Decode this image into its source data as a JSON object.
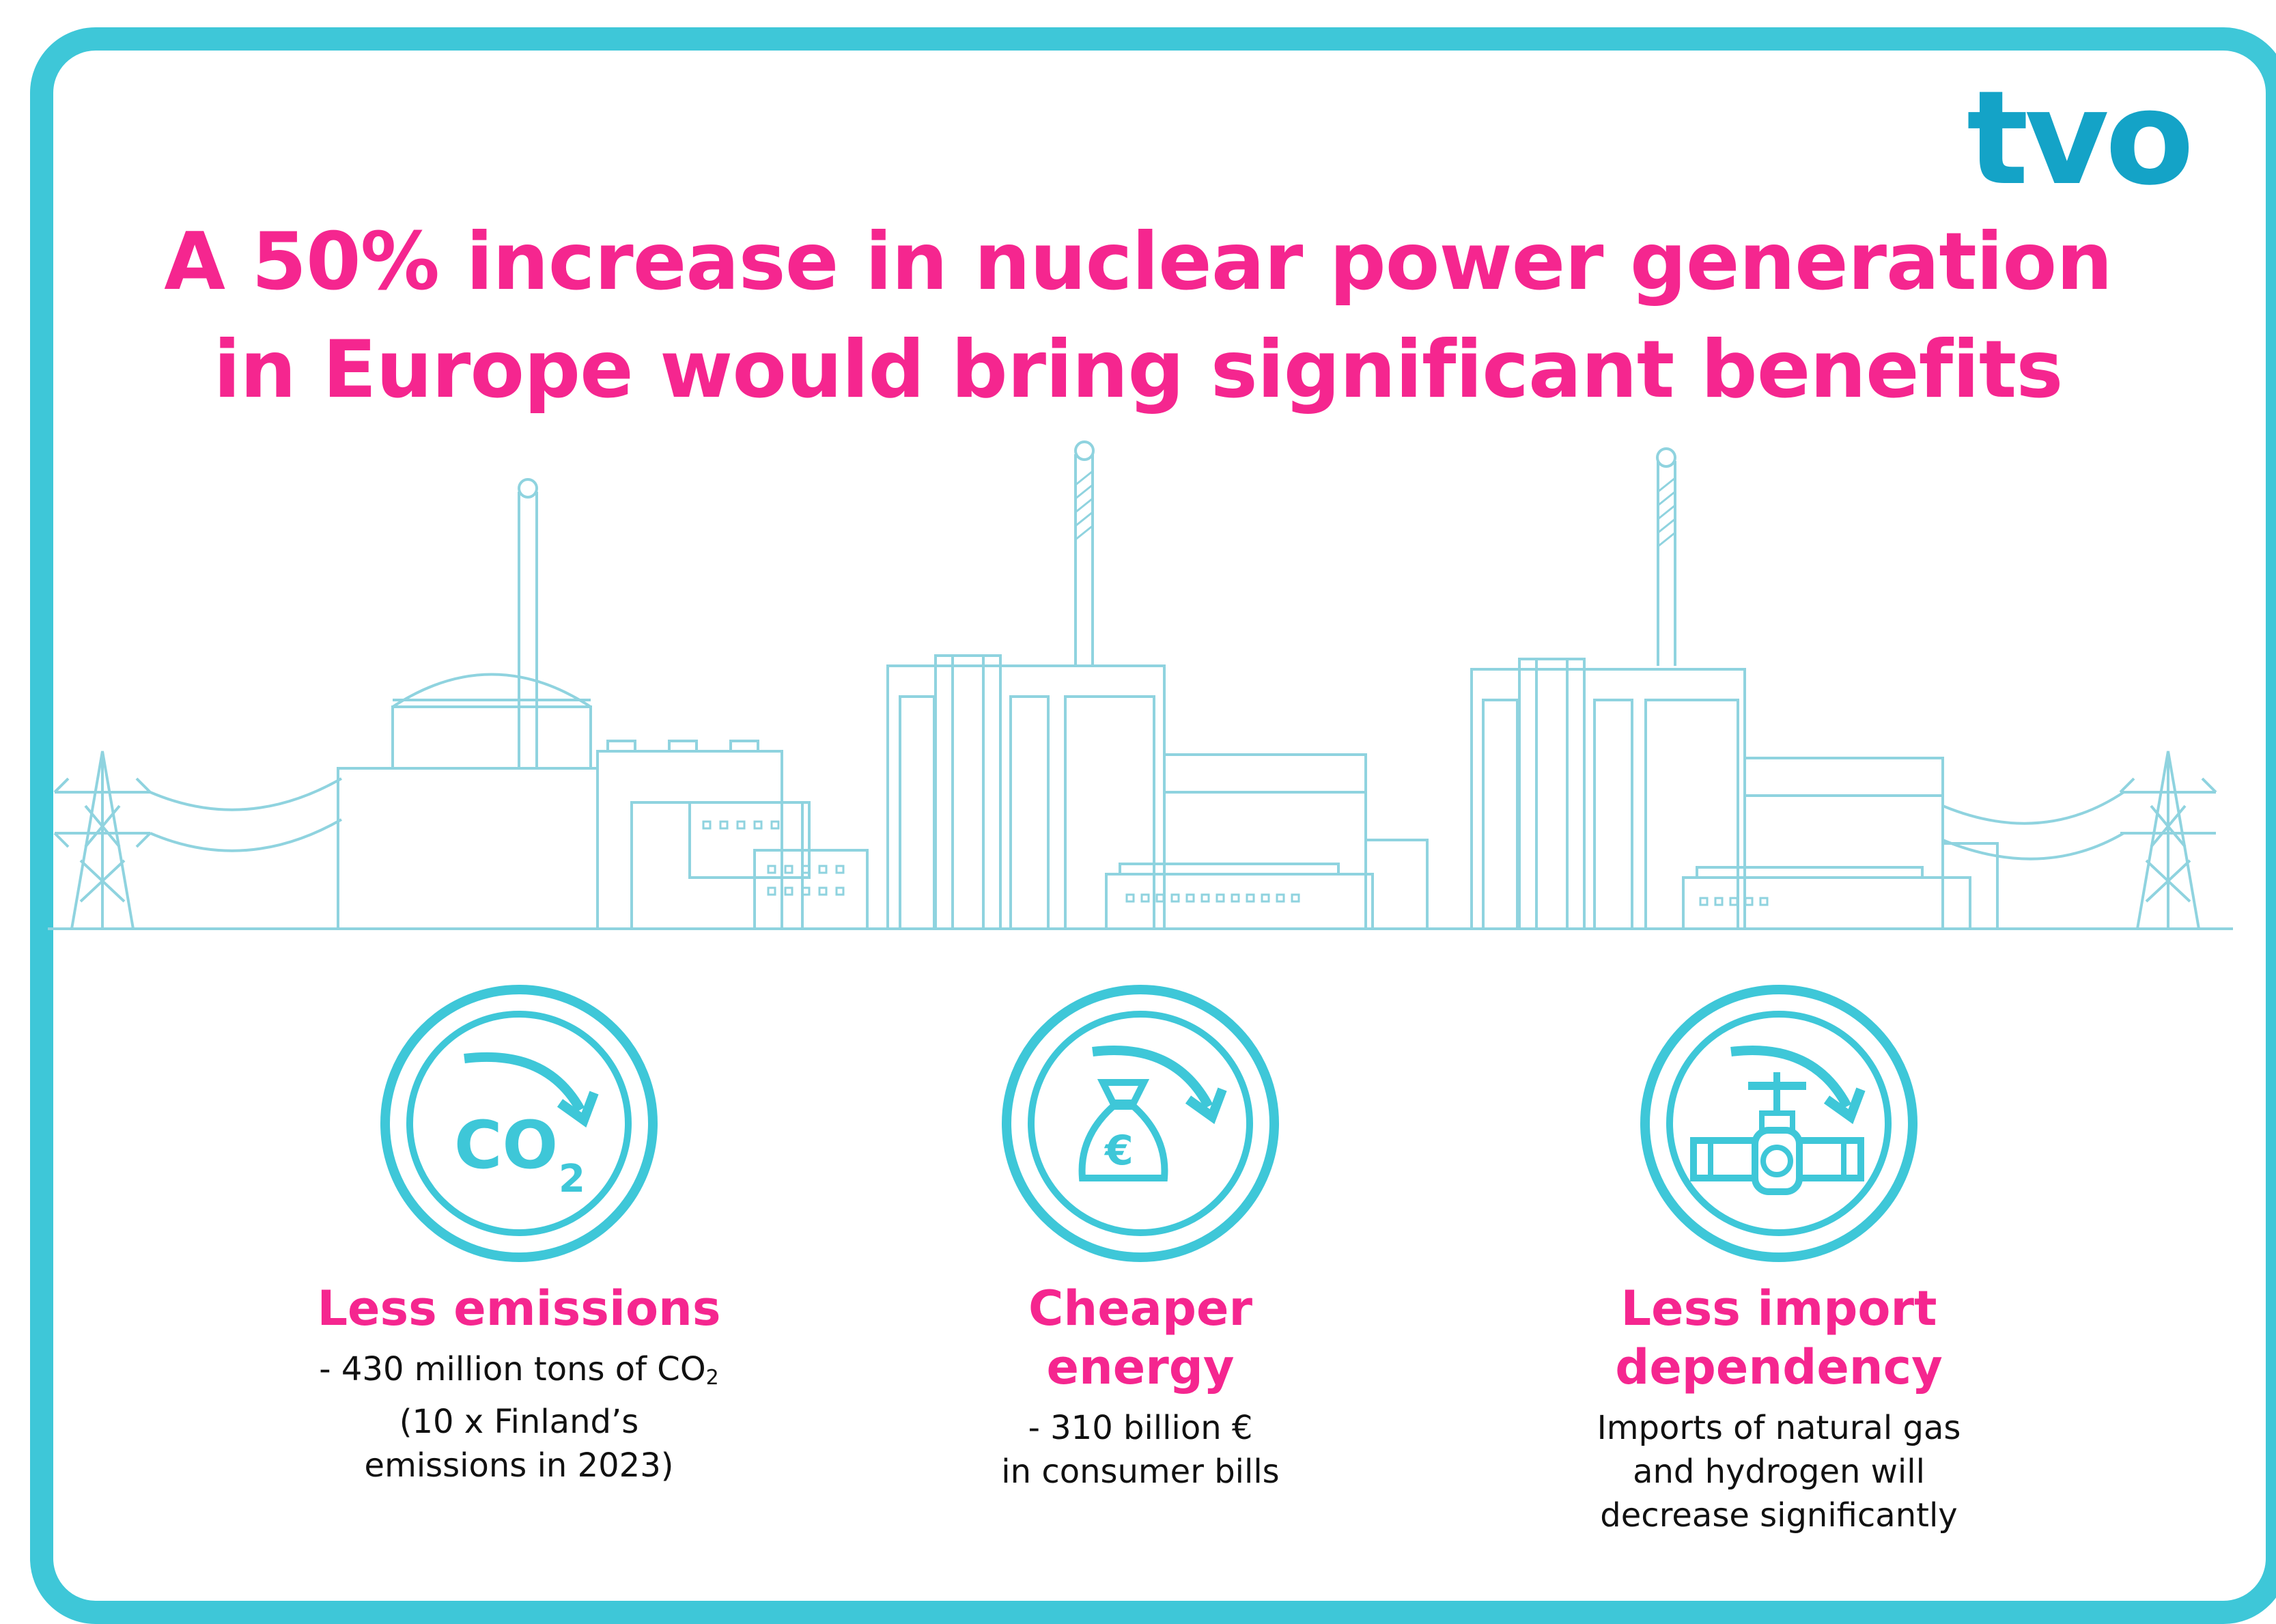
{
  "logo": {
    "text": "tvo"
  },
  "title": {
    "line1": "A 50% increase in nuclear power generation",
    "line2": "in Europe would bring significant benefits"
  },
  "colors": {
    "accent": "#f5268f",
    "frame": "#3ec7d8",
    "line_art": "#8fd3df",
    "icon": "#3ec7d8",
    "logo": "#14a3c7"
  },
  "benefits": [
    {
      "icon": "co2-down-icon",
      "icon_text": "CO",
      "icon_sub": "2",
      "title_line1": "Less emissions",
      "title_line2": "",
      "desc_line1_text": "- 430 million tons of CO",
      "desc_line1_sub": "2",
      "desc_line2": "(10 x Finland’s",
      "desc_line3": "emissions in 2023)"
    },
    {
      "icon": "money-bag-down-icon",
      "icon_text": "€",
      "title_line1": "Cheaper",
      "title_line2": "energy",
      "desc_line1": "- 310 billion €",
      "desc_line2": "in consumer bills"
    },
    {
      "icon": "pipeline-valve-down-icon",
      "title_line1": "Less import",
      "title_line2": "dependency",
      "desc_line1": "Imports of natural gas",
      "desc_line2": "and hydrogen will",
      "desc_line3": "decrease significantly"
    }
  ]
}
